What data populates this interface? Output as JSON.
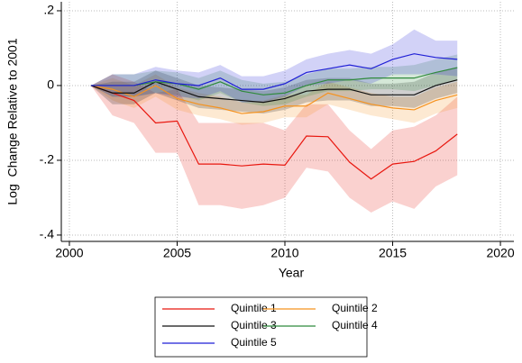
{
  "chart_data": {
    "type": "line",
    "x_label": "Year",
    "y_label": "Log  Change Relative to 2001",
    "x": [
      2001,
      2002,
      2003,
      2004,
      2005,
      2006,
      2007,
      2008,
      2009,
      2010,
      2011,
      2012,
      2013,
      2014,
      2015,
      2016,
      2017,
      2018
    ],
    "xlim": [
      1999.625,
      2020.625
    ],
    "xticks": [
      2000,
      2005,
      2010,
      2015,
      2020
    ],
    "ylim": [
      -0.417,
      0.224
    ],
    "yticks": [
      {
        "value": -0.4,
        "label": "-.4"
      },
      {
        "value": -0.2,
        "label": "-.2"
      },
      0,
      {
        "value": 0.2,
        "label": ".2"
      }
    ],
    "grid": true,
    "series": [
      {
        "name": "Quintile 1",
        "color": "#e8170f",
        "values": [
          0,
          -0.02,
          -0.04,
          -0.1,
          -0.095,
          -0.21,
          -0.21,
          -0.215,
          -0.21,
          -0.213,
          -0.135,
          -0.137,
          -0.205,
          -0.25,
          -0.21,
          -0.203,
          -0.175,
          -0.13
        ],
        "lower": [
          0,
          -0.08,
          -0.1,
          -0.18,
          -0.18,
          -0.32,
          -0.32,
          -0.33,
          -0.32,
          -0.3,
          -0.22,
          -0.23,
          -0.3,
          -0.34,
          -0.31,
          -0.33,
          -0.27,
          -0.24
        ],
        "upper": [
          0,
          0.03,
          0.01,
          -0.02,
          -0.01,
          -0.1,
          -0.1,
          -0.1,
          -0.1,
          -0.12,
          -0.05,
          -0.05,
          -0.12,
          -0.17,
          -0.12,
          -0.11,
          -0.08,
          -0.03
        ]
      },
      {
        "name": "Quintile 2",
        "color": "#f5921e",
        "values": [
          0,
          -0.01,
          -0.03,
          0,
          -0.035,
          -0.05,
          -0.06,
          -0.075,
          -0.07,
          -0.055,
          -0.055,
          -0.02,
          -0.035,
          -0.05,
          -0.06,
          -0.065,
          -0.04,
          -0.025
        ],
        "lower": [
          0,
          -0.04,
          -0.06,
          -0.03,
          -0.065,
          -0.08,
          -0.09,
          -0.105,
          -0.1,
          -0.085,
          -0.085,
          -0.05,
          -0.065,
          -0.08,
          -0.09,
          -0.1,
          -0.075,
          -0.06
        ],
        "upper": [
          0,
          0.02,
          0,
          0.03,
          -0.005,
          -0.02,
          -0.03,
          -0.045,
          -0.04,
          -0.025,
          -0.025,
          0.01,
          -0.005,
          -0.02,
          -0.03,
          -0.03,
          -0.005,
          0.01
        ]
      },
      {
        "name": "Quintile 3",
        "color": "#111111",
        "values": [
          0,
          -0.02,
          -0.02,
          0.01,
          -0.01,
          -0.03,
          -0.035,
          -0.04,
          -0.045,
          -0.035,
          -0.015,
          -0.01,
          -0.01,
          -0.025,
          -0.025,
          -0.025,
          0,
          0.015
        ],
        "lower": [
          0,
          -0.05,
          -0.05,
          -0.02,
          -0.04,
          -0.06,
          -0.065,
          -0.07,
          -0.075,
          -0.065,
          -0.045,
          -0.04,
          -0.04,
          -0.055,
          -0.055,
          -0.06,
          -0.035,
          -0.02
        ],
        "upper": [
          0,
          0.01,
          0.01,
          0.04,
          0.02,
          0,
          -0.005,
          -0.01,
          -0.015,
          -0.005,
          0.015,
          0.02,
          0.02,
          0.005,
          0.005,
          0.01,
          0.035,
          0.05
        ]
      },
      {
        "name": "Quintile 4",
        "color": "#2f8a3c",
        "values": [
          0,
          0,
          0,
          0.01,
          0.005,
          -0.01,
          0.01,
          -0.015,
          -0.025,
          -0.02,
          0,
          0.015,
          0.015,
          0.02,
          0.02,
          0.02,
          0.035,
          0.048
        ],
        "lower": [
          0,
          -0.03,
          -0.03,
          -0.02,
          -0.025,
          -0.04,
          -0.02,
          -0.045,
          -0.055,
          -0.05,
          -0.03,
          -0.015,
          -0.015,
          -0.01,
          -0.01,
          -0.015,
          0,
          0.013
        ],
        "upper": [
          0,
          0.03,
          0.03,
          0.04,
          0.035,
          0.02,
          0.04,
          0.015,
          0.005,
          0.01,
          0.03,
          0.045,
          0.045,
          0.05,
          0.05,
          0.055,
          0.07,
          0.083
        ]
      },
      {
        "name": "Quintile 5",
        "color": "#1f1fd6",
        "values": [
          0,
          0,
          0,
          0.015,
          0.005,
          0,
          0.02,
          -0.01,
          -0.01,
          0.005,
          0.035,
          0.045,
          0.055,
          0.045,
          0.07,
          0.085,
          0.075,
          0.07
        ],
        "lower": [
          0,
          -0.03,
          -0.03,
          -0.02,
          -0.03,
          -0.035,
          -0.015,
          -0.045,
          -0.045,
          -0.03,
          0,
          0.005,
          0.015,
          0.005,
          0.03,
          0.03,
          0.03,
          0.025
        ],
        "upper": [
          0,
          0.03,
          0.03,
          0.05,
          0.04,
          0.035,
          0.055,
          0.025,
          0.025,
          0.04,
          0.07,
          0.085,
          0.095,
          0.085,
          0.11,
          0.15,
          0.12,
          0.12
        ]
      }
    ]
  }
}
